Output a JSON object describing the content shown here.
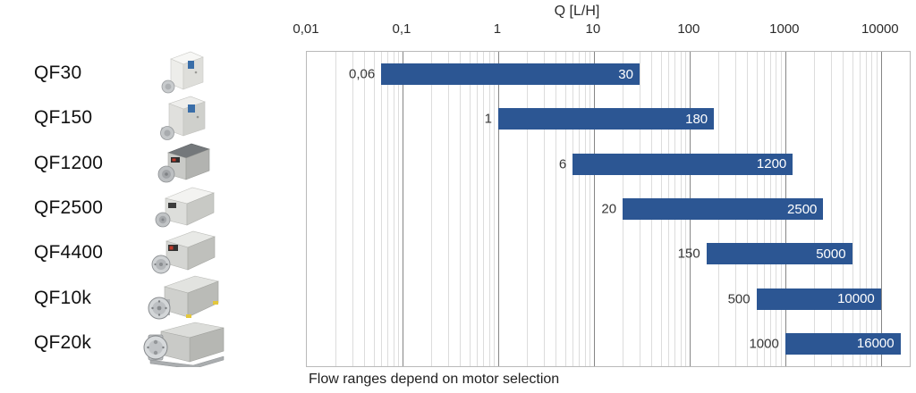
{
  "products": [
    {
      "label": "QF30"
    },
    {
      "label": "QF150"
    },
    {
      "label": "QF1200"
    },
    {
      "label": "QF2500"
    },
    {
      "label": "QF4400"
    },
    {
      "label": "QF10k"
    },
    {
      "label": "QF20k"
    }
  ],
  "chart_data": {
    "type": "bar",
    "orientation": "horizontal-range",
    "scale": "log",
    "axis_title": "Q [L/H]",
    "tick_labels": [
      "0,01",
      "0,1",
      "1",
      "10",
      "100",
      "1000",
      "10000"
    ],
    "tick_values": [
      0.01,
      0.1,
      1,
      10,
      100,
      1000,
      10000
    ],
    "xlim": [
      0.01,
      20000
    ],
    "grid": true,
    "legend": false,
    "categories": [
      "QF30",
      "QF150",
      "QF1200",
      "QF2500",
      "QF4400",
      "QF10k",
      "QF20k"
    ],
    "ranges": [
      {
        "model": "QF30",
        "min": 0.06,
        "max": 30,
        "min_label": "0,06",
        "max_label": "30"
      },
      {
        "model": "QF150",
        "min": 1,
        "max": 180,
        "min_label": "1",
        "max_label": "180"
      },
      {
        "model": "QF1200",
        "min": 6,
        "max": 1200,
        "min_label": "6",
        "max_label": "1200"
      },
      {
        "model": "QF2500",
        "min": 20,
        "max": 2500,
        "min_label": "20",
        "max_label": "2500"
      },
      {
        "model": "QF4400",
        "min": 150,
        "max": 5000,
        "min_label": "150",
        "max_label": "5000"
      },
      {
        "model": "QF10k",
        "min": 500,
        "max": 10000,
        "min_label": "500",
        "max_label": "10000"
      },
      {
        "model": "QF20k",
        "min": 1000,
        "max": 16000,
        "min_label": "1000",
        "max_label": "16000"
      }
    ],
    "caption": "Flow ranges depend on motor selection",
    "colors": {
      "bar": "#2c5693",
      "bar_label": "#ffffff",
      "min_label": "#373737",
      "grid_minor": "#dcdcdc",
      "grid_major": "#868686",
      "plot_border": "#b9b9b9"
    }
  }
}
